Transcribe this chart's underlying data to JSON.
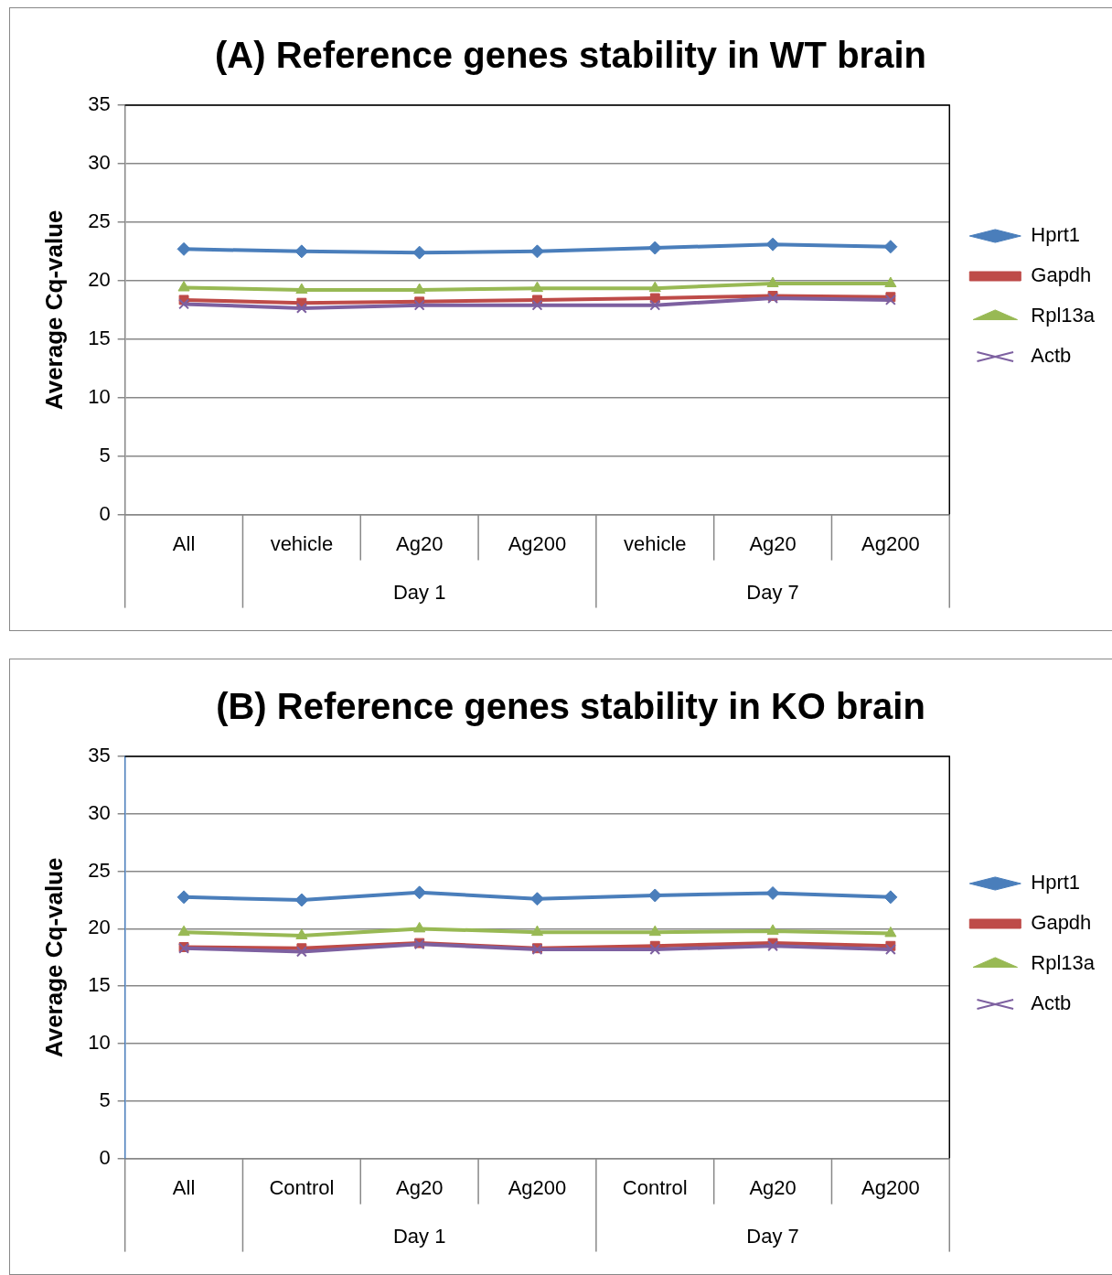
{
  "chart_data": [
    {
      "type": "line",
      "title": "(A) Reference genes stability in WT brain",
      "ylabel": "Average Cq-value",
      "categories": [
        "All",
        "vehicle",
        "Ag20",
        "Ag200",
        "vehicle",
        "Ag20",
        "Ag200"
      ],
      "annotations": [
        "Day 1",
        "Day 7"
      ],
      "ylim": [
        0,
        35
      ],
      "yticks": [
        0,
        5,
        10,
        15,
        20,
        25,
        30,
        35
      ],
      "grid": "y",
      "legend": "right",
      "series": [
        {
          "name": "Hprt1",
          "color": "#4a7ebb",
          "marker": "diamond",
          "values": [
            22.7,
            22.5,
            22.4,
            22.5,
            22.8,
            23.1,
            22.9
          ]
        },
        {
          "name": "Gapdh",
          "color": "#be4b48",
          "marker": "square",
          "values": [
            18.35,
            18.1,
            18.2,
            18.35,
            18.5,
            18.7,
            18.6
          ]
        },
        {
          "name": "Rpl13a",
          "color": "#98b954",
          "marker": "triangle",
          "values": [
            19.4,
            19.2,
            19.2,
            19.35,
            19.35,
            19.75,
            19.75
          ]
        },
        {
          "name": "Actb",
          "color": "#7d60a0",
          "marker": "cross",
          "values": [
            18.0,
            17.65,
            17.9,
            17.9,
            17.9,
            18.5,
            18.35
          ]
        }
      ]
    },
    {
      "type": "line",
      "title": "(B) Reference genes stability in KO brain",
      "ylabel": "Average Cq-value",
      "categories": [
        "All",
        "Control",
        "Ag20",
        "Ag200",
        "Control",
        "Ag20",
        "Ag200"
      ],
      "annotations": [
        "Day 1",
        "Day 7"
      ],
      "ylim": [
        0,
        35
      ],
      "yticks": [
        0,
        5,
        10,
        15,
        20,
        25,
        30,
        35
      ],
      "grid": "y",
      "legend": "right",
      "series": [
        {
          "name": "Hprt1",
          "color": "#4a7ebb",
          "marker": "diamond",
          "values": [
            22.75,
            22.5,
            23.15,
            22.6,
            22.9,
            23.1,
            22.75
          ]
        },
        {
          "name": "Gapdh",
          "color": "#be4b48",
          "marker": "square",
          "values": [
            18.4,
            18.3,
            18.75,
            18.3,
            18.5,
            18.75,
            18.5
          ]
        },
        {
          "name": "Rpl13a",
          "color": "#98b954",
          "marker": "triangle",
          "values": [
            19.7,
            19.4,
            20.0,
            19.7,
            19.7,
            19.8,
            19.6
          ]
        },
        {
          "name": "Actb",
          "color": "#7d60a0",
          "marker": "cross",
          "values": [
            18.3,
            18.0,
            18.65,
            18.2,
            18.2,
            18.5,
            18.2
          ]
        }
      ]
    }
  ]
}
